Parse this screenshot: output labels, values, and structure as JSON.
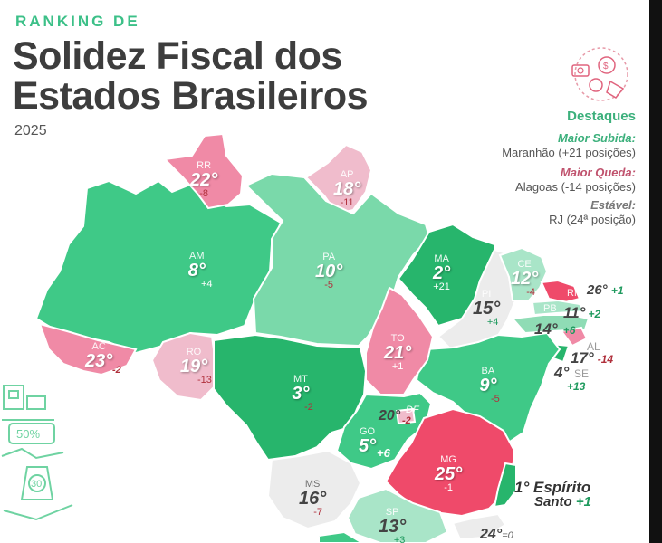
{
  "header": {
    "kicker": "RANKING DE",
    "title_line1": "Solidez Fiscal dos",
    "title_line2": "Estados Brasileiros",
    "year": "2025"
  },
  "highlights": {
    "title": "Destaques",
    "items": [
      {
        "label": "Maior Subida:",
        "value": "Maranhão (+21 posições)",
        "color": "#3cb07c"
      },
      {
        "label": "Maior Queda:",
        "value": "Alagoas (-14 posições)",
        "color": "#c0536e"
      },
      {
        "label": "Estável:",
        "value": "RJ (24ª posição)",
        "color": "#777777"
      }
    ]
  },
  "legend_colors": {
    "dark_green": "#27b56c",
    "green": "#3fc987",
    "light_green": "#7ad9aa",
    "pale_green": "#a9e5c8",
    "light_pink": "#f0bccc",
    "pink": "#f08aa6",
    "red": "#ef4a6a"
  },
  "states": {
    "RR": {
      "code": "RR",
      "rank": "22°",
      "change": "-8"
    },
    "AP": {
      "code": "AP",
      "rank": "18°",
      "change": "-11"
    },
    "AM": {
      "code": "AM",
      "rank": "8°",
      "change": "+4"
    },
    "PA": {
      "code": "PA",
      "rank": "10°",
      "change": "-5"
    },
    "MA": {
      "code": "MA",
      "rank": "2°",
      "change": "+21"
    },
    "CE": {
      "code": "CE",
      "rank": "12°",
      "change": "-4"
    },
    "RN": {
      "code": "RN",
      "rank": "26°",
      "change": "+1"
    },
    "PI": {
      "code": "PI",
      "rank": "15°",
      "change": "+4"
    },
    "PB": {
      "code": "PB",
      "rank": "11°",
      "change": "+2"
    },
    "PE": {
      "code": "PE",
      "rank": "14°",
      "change": "+6"
    },
    "AL": {
      "code": "AL",
      "rank": "17°",
      "change": "-14"
    },
    "SE": {
      "code": "SE",
      "rank": "4°",
      "change": "+13"
    },
    "AC": {
      "code": "AC",
      "rank": "23°",
      "change": "-2"
    },
    "RO": {
      "code": "RO",
      "rank": "19°",
      "change": "-13"
    },
    "TO": {
      "code": "TO",
      "rank": "21°",
      "change": "+1"
    },
    "BA": {
      "code": "BA",
      "rank": "9°",
      "change": "-5"
    },
    "MT": {
      "code": "MT",
      "rank": "3°",
      "change": "-2"
    },
    "DF": {
      "code": "DF",
      "rank": "20°",
      "change": "-2"
    },
    "GO": {
      "code": "GO",
      "rank": "5°",
      "change": "+6"
    },
    "MG": {
      "code": "MG",
      "rank": "25°",
      "change": "-1"
    },
    "ES": {
      "code": "1° Espírito",
      "rank": "Santo",
      "change": "+1"
    },
    "MS": {
      "code": "MS",
      "rank": "16°",
      "change": "-7"
    },
    "SP": {
      "code": "SP",
      "rank": "13°",
      "change": "+3"
    },
    "RJ": {
      "code": "24°",
      "rank": "=0",
      "change": ""
    }
  },
  "icons": {
    "badge": "coins-money-icon",
    "decoration": "discount-shopping-icon"
  }
}
